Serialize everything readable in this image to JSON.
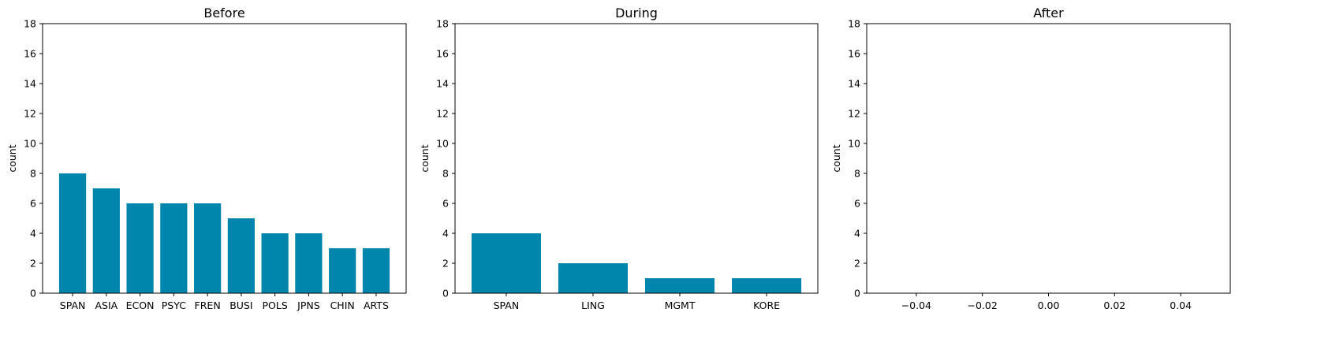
{
  "bar_color": "#0086ad",
  "chart_data": [
    {
      "type": "bar",
      "title": "Before",
      "xlabel": "",
      "ylabel": "count",
      "ylim": [
        0,
        18
      ],
      "yticks": [
        0,
        2,
        4,
        6,
        8,
        10,
        12,
        14,
        16,
        18
      ],
      "categories": [
        "SPAN",
        "ASIA",
        "ECON",
        "PSYC",
        "FREN",
        "BUSI",
        "POLS",
        "JPNS",
        "CHIN",
        "ARTS"
      ],
      "values": [
        8,
        7,
        6,
        6,
        6,
        5,
        4,
        4,
        3,
        3
      ]
    },
    {
      "type": "bar",
      "title": "During",
      "xlabel": "",
      "ylabel": "count",
      "ylim": [
        0,
        18
      ],
      "yticks": [
        0,
        2,
        4,
        6,
        8,
        10,
        12,
        14,
        16,
        18
      ],
      "categories": [
        "SPAN",
        "LING",
        "MGMT",
        "KORE"
      ],
      "values": [
        4,
        2,
        1,
        1
      ]
    },
    {
      "type": "bar",
      "title": "After",
      "xlabel": "",
      "ylabel": "count",
      "ylim": [
        0,
        18
      ],
      "yticks": [
        0,
        2,
        4,
        6,
        8,
        10,
        12,
        14,
        16,
        18
      ],
      "xlim": [
        -0.055,
        0.055
      ],
      "xticks": [
        "-0.04",
        "-0.02",
        "0.00",
        "0.02",
        "0.04"
      ],
      "categories": [],
      "values": []
    }
  ]
}
